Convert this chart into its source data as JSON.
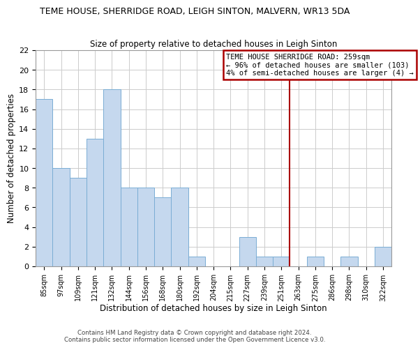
{
  "title": "TEME HOUSE, SHERRIDGE ROAD, LEIGH SINTON, MALVERN, WR13 5DA",
  "subtitle": "Size of property relative to detached houses in Leigh Sinton",
  "xlabel": "Distribution of detached houses by size in Leigh Sinton",
  "ylabel": "Number of detached properties",
  "bar_color": "#c5d8ee",
  "bar_edge_color": "#7aadd4",
  "categories": [
    "85sqm",
    "97sqm",
    "109sqm",
    "121sqm",
    "132sqm",
    "144sqm",
    "156sqm",
    "168sqm",
    "180sqm",
    "192sqm",
    "204sqm",
    "215sqm",
    "227sqm",
    "239sqm",
    "251sqm",
    "263sqm",
    "275sqm",
    "286sqm",
    "298sqm",
    "310sqm",
    "322sqm"
  ],
  "values": [
    17,
    10,
    9,
    13,
    18,
    8,
    8,
    7,
    8,
    1,
    0,
    0,
    3,
    1,
    1,
    0,
    1,
    0,
    1,
    0,
    2
  ],
  "ylim": [
    0,
    22
  ],
  "yticks": [
    0,
    2,
    4,
    6,
    8,
    10,
    12,
    14,
    16,
    18,
    20,
    22
  ],
  "property_line_color": "#aa0000",
  "legend_title": "TEME HOUSE SHERRIDGE ROAD: 259sqm",
  "legend_line1": "← 96% of detached houses are smaller (103)",
  "legend_line2": "4% of semi-detached houses are larger (4) →",
  "footer_line1": "Contains HM Land Registry data © Crown copyright and database right 2024.",
  "footer_line2": "Contains public sector information licensed under the Open Government Licence v3.0.",
  "background_color": "#ffffff",
  "grid_color": "#cccccc"
}
